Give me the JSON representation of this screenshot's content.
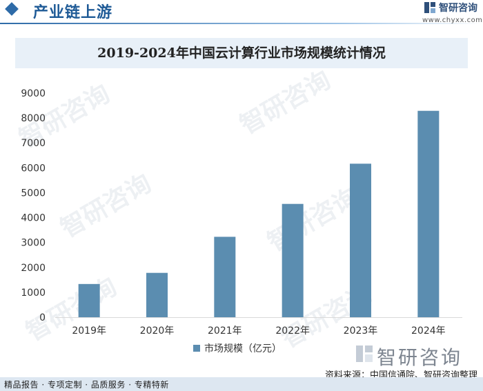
{
  "header": {
    "title": "产业链上游",
    "brand_name": "智研咨询",
    "brand_url": "www.chyxx.com"
  },
  "chart_data": {
    "type": "bar",
    "title": "2019-2024年中国云计算行业市场规模统计情况",
    "categories": [
      "2019年",
      "2020年",
      "2021年",
      "2022年",
      "2023年",
      "2024年"
    ],
    "series": [
      {
        "name": "市场规模（亿元）",
        "values": [
          1334,
          1781,
          3229,
          4550,
          6165,
          8288
        ]
      }
    ],
    "ylim": [
      0,
      9000
    ],
    "yticks": [
      0,
      1000,
      2000,
      3000,
      4000,
      5000,
      6000,
      7000,
      8000,
      9000
    ],
    "legend": "bottom",
    "grid": false,
    "bar_color": "#5b8db0"
  },
  "watermark": {
    "text": "智研咨询"
  },
  "source": "资料来源：中国信通院、智研咨询整理",
  "footer": "精品报告 · 专项定制 · 品质服务 · 专精特新",
  "colors": {
    "accent": "#1e5a96",
    "title_bg": "#e8f0f8",
    "footer_bg": "#dde7f1"
  }
}
